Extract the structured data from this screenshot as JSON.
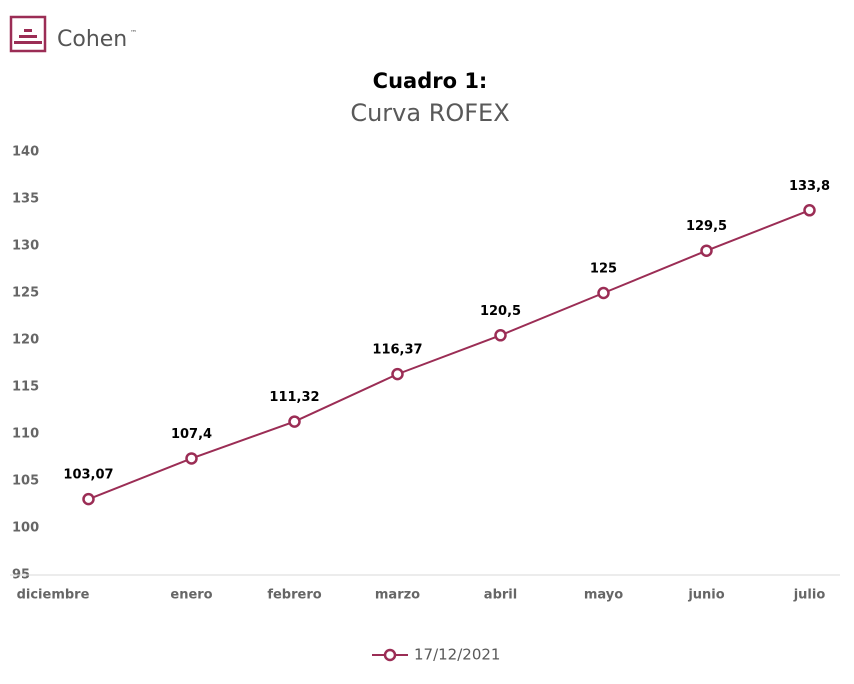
{
  "logo": {
    "text": "Cohen",
    "mark": "™"
  },
  "chart_data": {
    "type": "line",
    "title": "Cuadro 1:",
    "subtitle": "Curva ROFEX",
    "categories": [
      "diciembre",
      "enero",
      "febrero",
      "marzo",
      "abril",
      "mayo",
      "junio",
      "julio"
    ],
    "series": [
      {
        "name": "17/12/2021",
        "color": "#9b2d55",
        "values": [
          103.07,
          107.4,
          111.32,
          116.37,
          120.5,
          125,
          129.5,
          133.8
        ],
        "value_labels": [
          "103,07",
          "107,4",
          "111,32",
          "116,37",
          "120,5",
          "125",
          "129,5",
          "133,8"
        ]
      }
    ],
    "ylim": [
      95,
      140
    ],
    "yticks": [
      95,
      100,
      105,
      110,
      115,
      120,
      125,
      130,
      135,
      140
    ],
    "grid": false,
    "legend": "bottom"
  }
}
